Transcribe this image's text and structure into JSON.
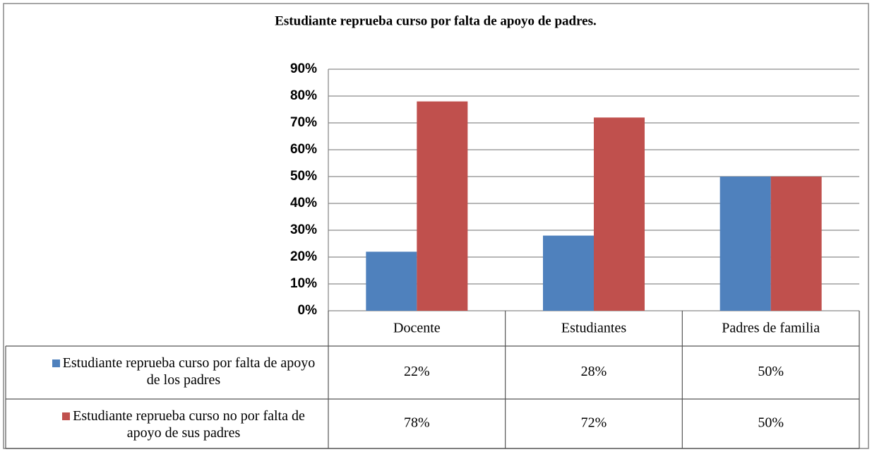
{
  "chart_data": {
    "type": "bar",
    "title": "Estudiante reprueba curso por falta de apoyo de padres.",
    "categories": [
      "Docente",
      "Estudiantes",
      "Padres de familia"
    ],
    "series": [
      {
        "name": "Estudiante reprueba curso por falta de apoyo de los padres",
        "color": "#4f81bd",
        "values": [
          22,
          28,
          50
        ],
        "value_labels": [
          "22%",
          "28%",
          "50%"
        ]
      },
      {
        "name": "Estudiante reprueba curso no por falta de apoyo de sus padres",
        "color": "#c0504d",
        "values": [
          78,
          72,
          50
        ],
        "value_labels": [
          "78%",
          "72%",
          "50%"
        ]
      }
    ],
    "ylim": [
      0,
      90
    ],
    "yticks": [
      {
        "value": 0,
        "label": "0%"
      },
      {
        "value": 10,
        "label": "10%"
      },
      {
        "value": 20,
        "label": "20%"
      },
      {
        "value": 30,
        "label": "30%"
      },
      {
        "value": 40,
        "label": "40%"
      },
      {
        "value": 50,
        "label": "50%"
      },
      {
        "value": 60,
        "label": "60%"
      },
      {
        "value": 70,
        "label": "70%"
      },
      {
        "value": 80,
        "label": "80%"
      },
      {
        "value": 90,
        "label": "90%"
      }
    ],
    "grid": true
  }
}
